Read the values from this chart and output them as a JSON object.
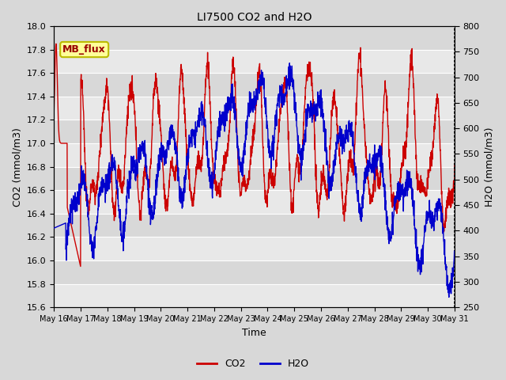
{
  "title": "LI7500 CO2 and H2O",
  "xlabel": "Time",
  "ylabel_left": "CO2 (mmol/m3)",
  "ylabel_right": "H2O (mmol/m3)",
  "co2_ylim": [
    15.6,
    18.0
  ],
  "h2o_ylim": [
    250,
    800
  ],
  "co2_yticks": [
    15.6,
    15.8,
    16.0,
    16.2,
    16.4,
    16.6,
    16.8,
    17.0,
    17.2,
    17.4,
    17.6,
    17.8,
    18.0
  ],
  "h2o_yticks": [
    250,
    300,
    350,
    400,
    450,
    500,
    550,
    600,
    650,
    700,
    750,
    800
  ],
  "xtick_labels": [
    "May 16",
    "May 17",
    "May 18",
    "May 19",
    "May 20",
    "May 21",
    "May 22",
    "May 23",
    "May 24",
    "May 25",
    "May 26",
    "May 27",
    "May 28",
    "May 29",
    "May 30",
    "May 31"
  ],
  "co2_color": "#cc0000",
  "h2o_color": "#0000cc",
  "annotation_text": "MB_flux",
  "annotation_bg": "#ffff99",
  "annotation_border": "#bbbb00",
  "light_band": "#dcdcdc",
  "dark_band": "#c8c8c8",
  "legend_co2": "CO2",
  "legend_h2o": "H2O",
  "n_points": 2000,
  "fig_bg": "#d8d8d8"
}
